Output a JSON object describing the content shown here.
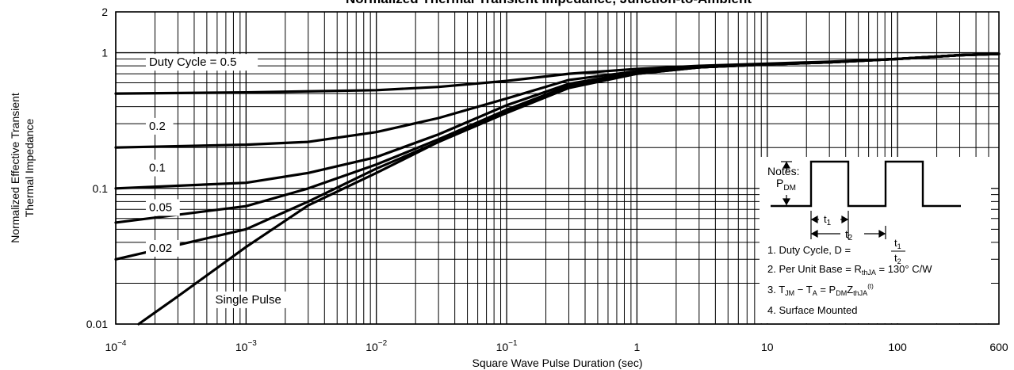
{
  "chart_data": {
    "type": "line",
    "title": "Normalized Thermal Transient Impedance, Junction-to-Ambient",
    "xlabel": "Square Wave Pulse Duration (sec)",
    "ylabel_line1": "Normalized Effective Transient",
    "ylabel_line2": "Thermal Impedance",
    "x_scale": "log",
    "y_scale": "log",
    "xlim": [
      0.0001,
      600
    ],
    "ylim": [
      0.01,
      2
    ],
    "grid": true,
    "x_ticks": [
      {
        "value": 0.0001,
        "base": "10",
        "exp": "−4"
      },
      {
        "value": 0.001,
        "base": "10",
        "exp": "−3"
      },
      {
        "value": 0.01,
        "base": "10",
        "exp": "−2"
      },
      {
        "value": 0.1,
        "base": "10",
        "exp": "−1"
      },
      {
        "value": 1,
        "base": "1",
        "exp": ""
      },
      {
        "value": 10,
        "base": "10",
        "exp": ""
      },
      {
        "value": 100,
        "base": "100",
        "exp": ""
      },
      {
        "value": 600,
        "base": "600",
        "exp": ""
      }
    ],
    "y_ticks": [
      {
        "value": 0.01,
        "label": "0.01"
      },
      {
        "value": 0.1,
        "label": "0.1"
      },
      {
        "value": 1,
        "label": "1"
      },
      {
        "value": 2,
        "label": "2"
      }
    ],
    "series": [
      {
        "name": "Duty Cycle = 0.5",
        "points": [
          [
            0.0001,
            0.5
          ],
          [
            0.001,
            0.51
          ],
          [
            0.01,
            0.53
          ],
          [
            0.03,
            0.56
          ],
          [
            0.1,
            0.62
          ],
          [
            0.3,
            0.7
          ],
          [
            1,
            0.76
          ],
          [
            3,
            0.8
          ],
          [
            10,
            0.83
          ],
          [
            30,
            0.86
          ],
          [
            100,
            0.9
          ],
          [
            300,
            0.96
          ],
          [
            600,
            0.98
          ]
        ]
      },
      {
        "name": "0.2",
        "points": [
          [
            0.0001,
            0.2
          ],
          [
            0.001,
            0.21
          ],
          [
            0.003,
            0.22
          ],
          [
            0.01,
            0.26
          ],
          [
            0.03,
            0.33
          ],
          [
            0.1,
            0.46
          ],
          [
            0.3,
            0.63
          ],
          [
            1,
            0.73
          ],
          [
            3,
            0.78
          ],
          [
            10,
            0.82
          ],
          [
            30,
            0.85
          ],
          [
            100,
            0.9
          ],
          [
            300,
            0.96
          ],
          [
            600,
            0.98
          ]
        ]
      },
      {
        "name": "0.1",
        "points": [
          [
            0.0001,
            0.1
          ],
          [
            0.001,
            0.11
          ],
          [
            0.003,
            0.13
          ],
          [
            0.01,
            0.17
          ],
          [
            0.03,
            0.25
          ],
          [
            0.1,
            0.41
          ],
          [
            0.3,
            0.59
          ],
          [
            1,
            0.72
          ],
          [
            3,
            0.78
          ],
          [
            10,
            0.82
          ],
          [
            30,
            0.85
          ],
          [
            100,
            0.9
          ],
          [
            300,
            0.96
          ],
          [
            600,
            0.98
          ]
        ]
      },
      {
        "name": "0.05",
        "points": [
          [
            0.0001,
            0.056
          ],
          [
            0.001,
            0.074
          ],
          [
            0.003,
            0.1
          ],
          [
            0.01,
            0.15
          ],
          [
            0.03,
            0.23
          ],
          [
            0.1,
            0.38
          ],
          [
            0.3,
            0.57
          ],
          [
            1,
            0.71
          ],
          [
            3,
            0.78
          ],
          [
            10,
            0.82
          ],
          [
            30,
            0.85
          ],
          [
            100,
            0.9
          ],
          [
            300,
            0.96
          ],
          [
            600,
            0.98
          ]
        ]
      },
      {
        "name": "0.02",
        "points": [
          [
            0.0001,
            0.03
          ],
          [
            0.001,
            0.05
          ],
          [
            0.003,
            0.08
          ],
          [
            0.01,
            0.14
          ],
          [
            0.03,
            0.22
          ],
          [
            0.1,
            0.37
          ],
          [
            0.3,
            0.56
          ],
          [
            1,
            0.7
          ],
          [
            3,
            0.78
          ],
          [
            10,
            0.82
          ],
          [
            30,
            0.85
          ],
          [
            100,
            0.9
          ],
          [
            300,
            0.96
          ],
          [
            600,
            0.98
          ]
        ]
      },
      {
        "name": "Single Pulse",
        "points": [
          [
            0.00015,
            0.01
          ],
          [
            0.0003,
            0.016
          ],
          [
            0.001,
            0.037
          ],
          [
            0.003,
            0.075
          ],
          [
            0.01,
            0.13
          ],
          [
            0.03,
            0.22
          ],
          [
            0.1,
            0.36
          ],
          [
            0.3,
            0.55
          ],
          [
            1,
            0.7
          ],
          [
            3,
            0.78
          ],
          [
            10,
            0.82
          ],
          [
            30,
            0.85
          ],
          [
            100,
            0.9
          ],
          [
            300,
            0.96
          ],
          [
            600,
            0.98
          ]
        ]
      }
    ],
    "series_labels": [
      {
        "text": "Duty Cycle = 0.5",
        "x": 0.00018,
        "y": 0.8
      },
      {
        "text": "0.2",
        "x": 0.00018,
        "y": 0.27
      },
      {
        "text": "0.1",
        "x": 0.00018,
        "y": 0.133
      },
      {
        "text": "0.05",
        "x": 0.00018,
        "y": 0.068
      },
      {
        "text": "0.02",
        "x": 0.00018,
        "y": 0.034
      },
      {
        "text": "Single Pulse",
        "x": 0.00058,
        "y": 0.0142
      }
    ]
  },
  "notes": {
    "heading": "Notes:",
    "pdm_symbol": "P",
    "pdm_sub": "DM",
    "t1_label": "t",
    "t1_sub": "1",
    "t2_label": "t",
    "t2_sub": "2",
    "note1_prefix": "1. Duty Cycle, D =",
    "note1_num": "t",
    "note1_num_sub": "1",
    "note1_den": "t",
    "note1_den_sub": "2",
    "note2_prefix": "2. Per Unit Base = R",
    "note2_sub": "thJA",
    "note2_suffix": " = 130° C/W",
    "note3_a": "3. T",
    "note3_a_sub": "JM",
    "note3_b": " − T",
    "note3_b_sub": "A",
    "note3_c": " = P",
    "note3_c_sub": "DM",
    "note3_d": "Z",
    "note3_d_sub": "thJA",
    "note3_sup": "(t)",
    "note4": "4. Surface Mounted"
  }
}
